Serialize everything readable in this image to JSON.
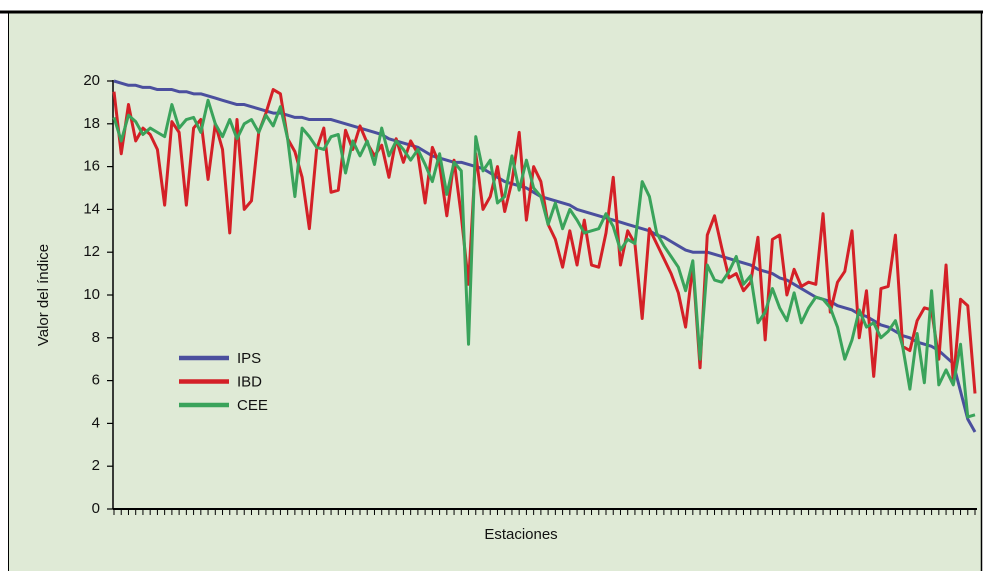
{
  "chart_data": {
    "type": "line",
    "y_label": "Valor del índice",
    "x_label": "Estaciones",
    "categories": [
      null,
      null,
      null,
      null,
      null,
      null,
      null,
      null,
      null,
      null,
      null,
      null,
      null,
      null,
      null,
      null,
      null,
      null,
      null,
      null,
      null,
      null,
      null,
      null,
      null,
      null,
      null,
      null,
      null,
      null,
      null,
      null,
      null,
      null,
      null,
      null,
      null,
      null,
      null,
      null,
      null,
      null,
      null,
      null,
      null,
      null,
      null,
      null,
      null,
      null,
      null,
      null,
      null,
      null,
      null,
      null,
      null,
      null,
      null,
      null,
      null,
      null,
      null,
      null,
      null,
      null,
      null,
      null,
      null,
      null,
      null,
      null,
      null,
      null,
      null,
      null,
      null,
      null,
      null,
      null,
      null,
      null,
      null,
      null,
      null,
      null,
      null,
      null,
      null,
      null,
      null,
      null,
      null,
      null,
      null,
      null,
      null,
      null,
      null,
      null,
      null,
      null,
      null,
      null,
      null,
      null,
      null,
      null,
      null,
      null,
      null,
      null,
      null,
      null,
      null,
      null,
      null,
      null,
      null,
      null
    ],
    "series": [
      {
        "name": "IPS",
        "color": "#4b4f9e",
        "values": [
          20,
          19.9,
          19.8,
          19.8,
          19.7,
          19.7,
          19.6,
          19.6,
          19.6,
          19.5,
          19.5,
          19.4,
          19.4,
          19.3,
          19.2,
          19.1,
          19,
          18.9,
          18.9,
          18.8,
          18.7,
          18.6,
          18.5,
          18.5,
          18.4,
          18.3,
          18.3,
          18.2,
          18.2,
          18.2,
          18.2,
          18.1,
          18,
          17.9,
          17.8,
          17.7,
          17.6,
          17.5,
          17.3,
          17.2,
          17.1,
          17,
          16.9,
          16.7,
          16.5,
          16.4,
          16.3,
          16.2,
          16.2,
          16.1,
          16,
          15.9,
          15.7,
          15.5,
          15.3,
          15.2,
          15.1,
          15,
          14.8,
          14.6,
          14.5,
          14.4,
          14.3,
          14.2,
          14,
          13.9,
          13.8,
          13.7,
          13.6,
          13.5,
          13.4,
          13.3,
          13.2,
          13.1,
          13,
          12.8,
          12.7,
          12.5,
          12.3,
          12.1,
          12,
          12,
          12,
          11.9,
          11.8,
          11.7,
          11.6,
          11.5,
          11.4,
          11.2,
          11.1,
          11,
          10.8,
          10.7,
          10.5,
          10.3,
          10.1,
          9.9,
          9.8,
          9.7,
          9.5,
          9.4,
          9.3,
          9.1,
          9,
          8.8,
          8.6,
          8.5,
          8.3,
          8.1,
          8,
          7.8,
          7.7,
          7.6,
          7.4,
          7.1,
          6.8,
          5.5,
          4.2,
          3.6
        ]
      },
      {
        "name": "IBD",
        "color": "#d42027",
        "values": [
          19.5,
          16.6,
          18.9,
          17.2,
          17.8,
          17.5,
          16.8,
          14.2,
          18.1,
          17.6,
          14.2,
          17.8,
          18.2,
          15.4,
          18,
          16.8,
          12.9,
          18.2,
          14,
          14.4,
          17.6,
          18.5,
          19.6,
          19.4,
          17.3,
          16.7,
          15.5,
          13.1,
          16.8,
          17.8,
          14.8,
          14.9,
          17.7,
          16.8,
          17.9,
          17.1,
          16.5,
          17,
          15.5,
          17.3,
          16.2,
          17.2,
          16.6,
          14.3,
          16.9,
          16.1,
          13.7,
          16.3,
          13.7,
          10.5,
          16.6,
          14,
          14.6,
          16,
          13.9,
          15.3,
          17.6,
          13.5,
          16,
          15.3,
          13.3,
          12.6,
          11.3,
          13,
          11.4,
          13.5,
          11.4,
          11.3,
          12.9,
          15.5,
          11.4,
          13,
          12.4,
          8.9,
          13.1,
          12.4,
          11.7,
          11,
          10.1,
          8.5,
          11.4,
          6.6,
          12.8,
          13.7,
          12.2,
          10.8,
          11,
          10.2,
          10.6,
          12.7,
          7.9,
          12.6,
          12.8,
          10,
          11.2,
          10.4,
          10.6,
          10.5,
          13.8,
          9.2,
          10.6,
          11.1,
          13,
          8,
          10.2,
          6.2,
          10.3,
          10.4,
          12.8,
          7.6,
          7.4,
          8.8,
          9.4,
          9.3,
          7,
          11.4,
          5.9,
          9.8,
          9.5,
          5.4
        ]
      },
      {
        "name": "CEE",
        "color": "#3aa35b",
        "values": [
          18.3,
          17.2,
          18.4,
          18.1,
          17.5,
          17.8,
          17.6,
          17.4,
          18.9,
          17.8,
          18.2,
          18.3,
          17.6,
          19.1,
          18,
          17.4,
          18.2,
          17.3,
          18,
          18.2,
          17.6,
          18.4,
          17.9,
          18.8,
          17.3,
          14.6,
          17.8,
          17.4,
          16.9,
          16.8,
          17.4,
          17.5,
          15.7,
          17.2,
          16.5,
          17.2,
          16.1,
          17.8,
          16.5,
          17.2,
          16.8,
          16.3,
          16.8,
          16.1,
          15.3,
          16.6,
          14.7,
          16.2,
          15.8,
          7.7,
          17.4,
          15.8,
          16.3,
          14.3,
          14.6,
          16.5,
          14.9,
          16.3,
          15,
          14.6,
          13.3,
          14.3,
          13.1,
          14,
          13.5,
          12.9,
          13,
          13.1,
          13.8,
          13.2,
          12.1,
          12.6,
          12.4,
          15.3,
          14.6,
          12.9,
          12.3,
          11.8,
          11.3,
          10.2,
          11.6,
          7,
          11.4,
          10.7,
          10.6,
          11.1,
          11.8,
          10.5,
          10.9,
          8.7,
          9.2,
          10.3,
          9.4,
          8.8,
          10.1,
          8.7,
          9.4,
          9.9,
          9.8,
          9.4,
          8.5,
          7,
          7.9,
          9.3,
          8.5,
          8.7,
          8,
          8.3,
          8.8,
          7.6,
          5.6,
          8.2,
          5.9,
          10.2,
          5.8,
          6.5,
          5.8,
          7.7,
          4.3,
          4.4
        ]
      }
    ],
    "ylim": [
      0,
      20
    ],
    "yticks": [
      0,
      2,
      4,
      6,
      8,
      10,
      12,
      14,
      16,
      18,
      20
    ],
    "legend": "left",
    "grid": false
  }
}
